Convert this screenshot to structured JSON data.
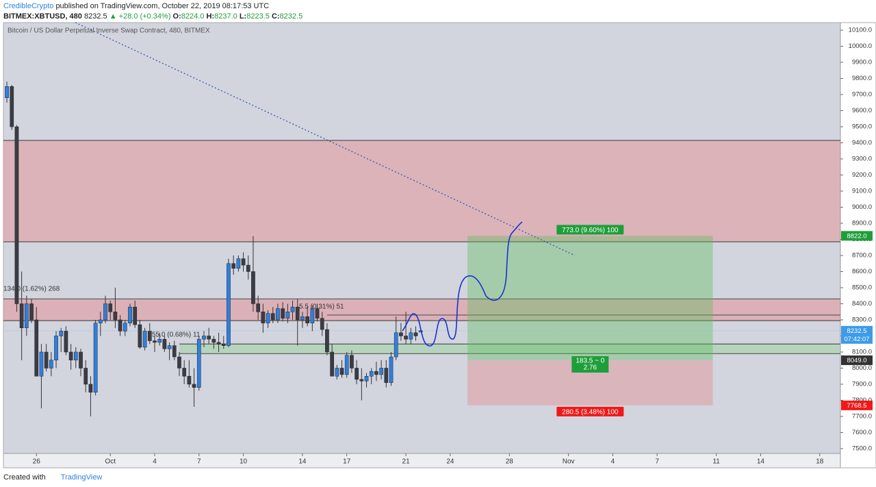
{
  "header": {
    "author": "CredibleCrypto",
    "published": "published on TradingView.com, October 22, 2019 08:17:53 UTC",
    "symbol": "BITMEX:XBTUSD, 480",
    "last": "8232.5",
    "change": "▲ +28.0 (+0.34%)",
    "ohlc": [
      {
        "key": "O:",
        "value": "8224.0"
      },
      {
        "key": "H:",
        "value": "8237.0"
      },
      {
        "key": "L:",
        "value": "8223.5"
      },
      {
        "key": "C:",
        "value": "8232.5"
      }
    ]
  },
  "footer": {
    "text": "Created with",
    "brand": "TradingView"
  },
  "chart_data": {
    "type": "candlestick",
    "title": "Bitcoin / US Dollar Perpetual Inverse Swap Contract, 480, BITMEX",
    "open": [
      9680,
      9750,
      9500,
      8400,
      8250,
      8400,
      8300,
      7950,
      8100,
      8000,
      8050,
      8200,
      8230,
      8100,
      8050,
      8100,
      8000,
      7900,
      7850,
      8280,
      8300,
      8400,
      8350,
      8300,
      8230,
      8280,
      8380,
      8270,
      8130,
      8230,
      8170,
      8160,
      8180,
      8120,
      8140,
      8070,
      8000,
      7950,
      7900,
      7880,
      8180,
      8200,
      8180,
      8160,
      8150,
      8140,
      8650,
      8620,
      8680,
      8640,
      8600,
      8400,
      8350,
      8280,
      8340,
      8300,
      8370,
      8310,
      8350,
      8380,
      8300,
      8320,
      8280,
      8370,
      8310,
      8240,
      8100,
      7950,
      8000,
      7960,
      8080,
      8000,
      7930,
      7920,
      7950,
      7980,
      7960,
      8000,
      7910,
      8070,
      8220,
      8200,
      8180,
      8220,
      8224
    ],
    "high": [
      9780,
      9760,
      9510,
      8600,
      8450,
      8430,
      8380,
      8150,
      8150,
      8100,
      8230,
      8250,
      8260,
      8150,
      8130,
      8120,
      8050,
      7950,
      8300,
      8350,
      8450,
      8420,
      8500,
      8330,
      8300,
      8400,
      8420,
      8300,
      8250,
      8280,
      8200,
      8220,
      8200,
      8160,
      8170,
      8100,
      8050,
      8050,
      8000,
      8200,
      8230,
      8250,
      8200,
      8220,
      8200,
      8680,
      8700,
      8700,
      8720,
      8700,
      8820,
      8450,
      8400,
      8360,
      8380,
      8400,
      8410,
      8400,
      8420,
      8430,
      8350,
      8380,
      8390,
      8400,
      8350,
      8280,
      8150,
      8020,
      8050,
      8100,
      8110,
      8050,
      8000,
      7970,
      8000,
      8040,
      8050,
      8050,
      8100,
      8320,
      8280,
      8350,
      8250,
      8260,
      8237
    ],
    "low": [
      9650,
      9480,
      8350,
      8050,
      8200,
      8280,
      7950,
      7750,
      7980,
      7950,
      8000,
      8100,
      8080,
      7990,
      8000,
      7950,
      7850,
      7700,
      7830,
      8200,
      8280,
      8300,
      8250,
      8200,
      8200,
      8260,
      8250,
      8120,
      8110,
      8150,
      8100,
      8140,
      8100,
      8050,
      8050,
      7950,
      7900,
      7880,
      7760,
      7860,
      8130,
      8150,
      8120,
      8100,
      8120,
      8130,
      8580,
      8600,
      8600,
      8550,
      8350,
      8300,
      8220,
      8250,
      8280,
      8280,
      8290,
      8280,
      8300,
      8140,
      8250,
      8260,
      8230,
      8290,
      8200,
      8080,
      7950,
      7930,
      7940,
      7940,
      7970,
      7900,
      7800,
      7880,
      7900,
      7920,
      7930,
      7880,
      7890,
      8050,
      8170,
      8150,
      8150,
      8170,
      8223.5
    ],
    "close": [
      9750,
      9500,
      8400,
      8250,
      8400,
      8300,
      7950,
      8100,
      8000,
      8050,
      8200,
      8230,
      8100,
      8050,
      8100,
      8000,
      7900,
      7850,
      8280,
      8300,
      8400,
      8350,
      8300,
      8230,
      8280,
      8380,
      8270,
      8130,
      8230,
      8170,
      8160,
      8180,
      8120,
      8140,
      8070,
      8000,
      7950,
      7900,
      7880,
      8180,
      8200,
      8180,
      8160,
      8150,
      8140,
      8650,
      8620,
      8680,
      8640,
      8600,
      8400,
      8350,
      8280,
      8340,
      8300,
      8370,
      8310,
      8350,
      8380,
      8300,
      8320,
      8280,
      8370,
      8310,
      8240,
      8100,
      7950,
      8000,
      7960,
      8080,
      8000,
      7930,
      7920,
      7950,
      7980,
      7960,
      8000,
      7910,
      8070,
      8220,
      8200,
      8180,
      8220,
      8200,
      8232.5
    ],
    "up_color": "#2f7fe0",
    "down_color": "#3a3d45",
    "xlim": [
      -0.7,
      169.2
    ],
    "xticks": [
      {
        "value": 6,
        "label": "26"
      },
      {
        "value": 21,
        "label": "Oct"
      },
      {
        "value": 30,
        "label": "4"
      },
      {
        "value": 39,
        "label": "7"
      },
      {
        "value": 48,
        "label": "10"
      },
      {
        "value": 60,
        "label": "14"
      },
      {
        "value": 69,
        "label": "17"
      },
      {
        "value": 81,
        "label": "21"
      },
      {
        "value": 90,
        "label": "24"
      },
      {
        "value": 102,
        "label": "28"
      },
      {
        "value": 114,
        "label": "Nov"
      },
      {
        "value": 123,
        "label": "4"
      },
      {
        "value": 132,
        "label": "7"
      },
      {
        "value": 144,
        "label": "11"
      },
      {
        "value": 153,
        "label": "14"
      },
      {
        "value": 165,
        "label": "18"
      }
    ],
    "ylim": [
      7470,
      10147
    ],
    "yticks": [
      {
        "value": 7500,
        "label": "7500.0"
      },
      {
        "value": 7600,
        "label": "7600.0"
      },
      {
        "value": 7700,
        "label": "7700.0"
      },
      {
        "value": 7800,
        "label": "7800.0"
      },
      {
        "value": 7900,
        "label": "7900.0"
      },
      {
        "value": 8000,
        "label": "8000.0"
      },
      {
        "value": 8100,
        "label": "8100.0"
      },
      {
        "value": 8200,
        "label": "8200.0"
      },
      {
        "value": 8300,
        "label": "8300.0"
      },
      {
        "value": 8400,
        "label": "8400.0"
      },
      {
        "value": 8500,
        "label": "8500.0"
      },
      {
        "value": 8600,
        "label": "8600.0"
      },
      {
        "value": 8700,
        "label": "8700.0"
      },
      {
        "value": 8800,
        "label": "8800.0"
      },
      {
        "value": 8900,
        "label": "8900.0"
      },
      {
        "value": 9000,
        "label": "9000.0"
      },
      {
        "value": 9100,
        "label": "9100.0"
      },
      {
        "value": 9200,
        "label": "9200.0"
      },
      {
        "value": 9300,
        "label": "9300.0"
      },
      {
        "value": 9400,
        "label": "9400.0"
      },
      {
        "value": 9500,
        "label": "9500.0"
      },
      {
        "value": 9600,
        "label": "9600.0"
      },
      {
        "value": 9700,
        "label": "9700.0"
      },
      {
        "value": 9800,
        "label": "9800.0"
      },
      {
        "value": 9900,
        "label": "9900.0"
      },
      {
        "value": 10000,
        "label": "10000.0"
      },
      {
        "value": 10100,
        "label": "10100.0"
      }
    ],
    "zones": [
      {
        "top": 9415,
        "bottom": 8785,
        "fill": "rgba(238,110,110,0.32)"
      },
      {
        "top": 8430,
        "bottom": 8295,
        "fill": "rgba(238,110,110,0.35)"
      },
      {
        "top": 8150,
        "bottom": 8090,
        "fill": "rgba(140,210,140,0.4)",
        "start": 35
      }
    ],
    "levels": [
      {
        "value": 8330,
        "start": 65
      }
    ],
    "position": {
      "x": [
        93.5,
        143.3
      ],
      "target": 8822,
      "entry": 8049,
      "stop": 7768.5,
      "target_label": "773.0 (9.60%) 100",
      "center_label": [
        "183.5 ~ 0",
        "2.76"
      ],
      "stop_label": "280.5 (3.48%) 100"
    },
    "price_labels": [
      {
        "value": 8822,
        "label": "8822.0",
        "color": "#1e9e3a"
      },
      {
        "value": 8232.5,
        "label": "8232.5",
        "sub": "07:42:07",
        "color": "#3d9be9"
      },
      {
        "value": 8049,
        "label": "8049.0",
        "color": "#333333"
      },
      {
        "value": 7768.5,
        "label": "7768.5",
        "color": "#f01818"
      }
    ],
    "annotations": [
      "134.0 (1.62%) 268",
      "5.5 (0.31%) 51",
      "55.0 (0.68%) 11"
    ]
  }
}
